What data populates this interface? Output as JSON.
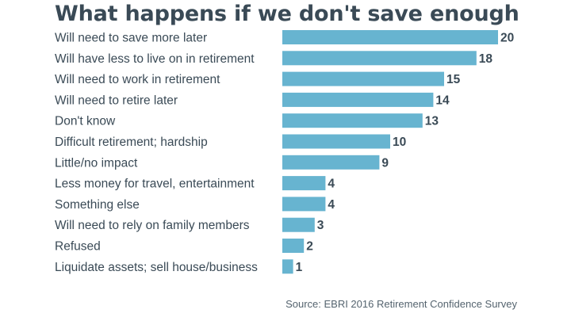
{
  "title": "What happens if we don't save enough",
  "source": "Source: EBRI 2016 Retirement Confidence Survey",
  "colors": {
    "bar": "#67b4d0",
    "text": "#3a4a56"
  },
  "chart_data": {
    "type": "bar",
    "orientation": "horizontal",
    "categories": [
      "Will need to save more later",
      "Will have less to live on in retirement",
      "Will need to work in retirement",
      "Will need to retire later",
      "Don't know",
      "Difficult retirement; hardship",
      "Little/no impact",
      "Less money for travel, entertainment",
      "Something else",
      "Will need to rely on family members",
      "Refused",
      "Liquidate assets; sell house/business"
    ],
    "values": [
      20,
      18,
      15,
      14,
      13,
      10,
      9,
      4,
      4,
      3,
      2,
      1
    ],
    "title": "What happens if we don't save enough",
    "xlabel": "",
    "ylabel": "",
    "xlim": [
      0,
      20
    ],
    "grid": false,
    "legend": "none",
    "data_labels": true
  }
}
